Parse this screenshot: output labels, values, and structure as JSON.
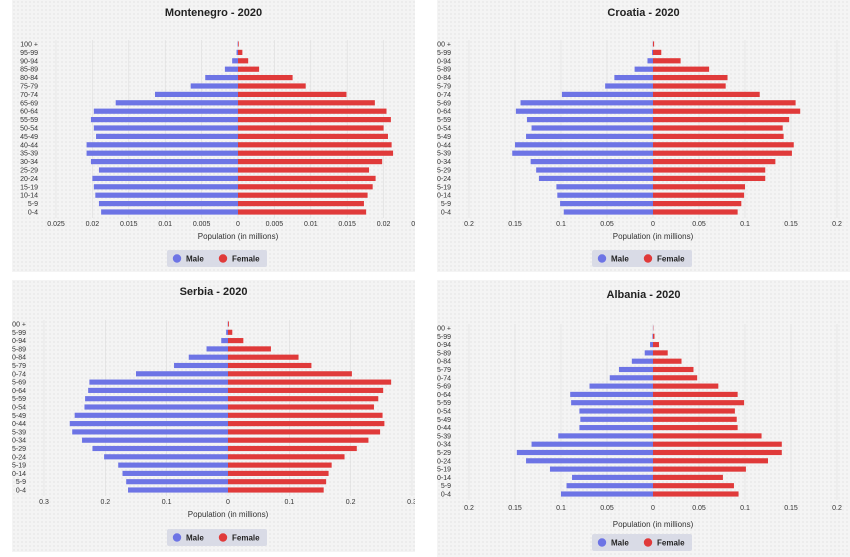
{
  "chart_data": [
    {
      "type": "bar",
      "title": "Montenegro - 2020",
      "xlabel": "Population (in millions)",
      "age_groups": [
        "0-4",
        "5-9",
        "10-14",
        "15-19",
        "20-24",
        "25-29",
        "30-34",
        "35-39",
        "40-44",
        "45-49",
        "50-54",
        "55-59",
        "60-64",
        "65-69",
        "70-74",
        "75-79",
        "80-84",
        "85-89",
        "90-94",
        "95-99",
        "100 +"
      ],
      "tick_labels": [
        "0.025",
        "0.02",
        "0.015",
        "0.01",
        "0.005",
        "0",
        "0.005",
        "0.01",
        "0.015",
        "0.02",
        "0.025"
      ],
      "xlim": [
        -0.025,
        0.025
      ],
      "series": [
        {
          "name": "Male",
          "values": [
            0.0188,
            0.0191,
            0.0196,
            0.0198,
            0.02,
            0.0191,
            0.0202,
            0.0208,
            0.0208,
            0.0195,
            0.0198,
            0.0202,
            0.0198,
            0.0168,
            0.0114,
            0.0065,
            0.0045,
            0.0018,
            0.0008,
            0.0002,
            5e-05
          ]
        },
        {
          "name": "Female",
          "values": [
            0.0176,
            0.0173,
            0.0178,
            0.0185,
            0.0189,
            0.018,
            0.0198,
            0.0213,
            0.0211,
            0.0206,
            0.02,
            0.021,
            0.0204,
            0.0188,
            0.0149,
            0.0093,
            0.0075,
            0.0029,
            0.0014,
            0.0006,
            0.0001
          ]
        }
      ]
    },
    {
      "type": "bar",
      "title": "Croatia - 2020",
      "xlabel": "Population (in millions)",
      "age_groups": [
        "0-4",
        "5-9",
        "10-14",
        "15-19",
        "20-24",
        "25-29",
        "30-34",
        "35-39",
        "40-44",
        "45-49",
        "50-54",
        "55-59",
        "60-64",
        "65-69",
        "70-74",
        "75-79",
        "80-84",
        "85-89",
        "90-94",
        "95-99",
        "100 +"
      ],
      "tick_labels": [
        "0.2",
        "0.15",
        "0.1",
        "0.05",
        "0",
        "0.05",
        "0.1",
        "0.15",
        "0.2"
      ],
      "xlim": [
        -0.2,
        0.2
      ],
      "series": [
        {
          "name": "Male",
          "values": [
            0.097,
            0.101,
            0.104,
            0.105,
            0.124,
            0.127,
            0.133,
            0.153,
            0.15,
            0.138,
            0.132,
            0.137,
            0.149,
            0.144,
            0.099,
            0.052,
            0.042,
            0.02,
            0.006,
            0.001,
            0.0002
          ]
        },
        {
          "name": "Female",
          "values": [
            0.092,
            0.096,
            0.099,
            0.1,
            0.122,
            0.122,
            0.133,
            0.151,
            0.153,
            0.142,
            0.141,
            0.148,
            0.16,
            0.155,
            0.116,
            0.079,
            0.081,
            0.061,
            0.03,
            0.009,
            0.0012
          ]
        }
      ]
    },
    {
      "type": "bar",
      "title": "Serbia - 2020",
      "xlabel": "Population (in millions)",
      "age_groups": [
        "0-4",
        "5-9",
        "10-14",
        "15-19",
        "20-24",
        "25-29",
        "30-34",
        "35-39",
        "40-44",
        "45-49",
        "50-54",
        "55-59",
        "60-64",
        "65-69",
        "70-74",
        "75-79",
        "80-84",
        "85-89",
        "90-94",
        "95-99",
        "100 +"
      ],
      "tick_labels": [
        "0.3",
        "0.2",
        "0.1",
        "0",
        "0.1",
        "0.2",
        "0.3"
      ],
      "xlim": [
        -0.3,
        0.3
      ],
      "series": [
        {
          "name": "Male",
          "values": [
            0.163,
            0.166,
            0.172,
            0.179,
            0.202,
            0.221,
            0.238,
            0.254,
            0.258,
            0.25,
            0.234,
            0.233,
            0.228,
            0.226,
            0.15,
            0.088,
            0.064,
            0.035,
            0.011,
            0.003,
            0.0004
          ]
        },
        {
          "name": "Female",
          "values": [
            0.156,
            0.16,
            0.164,
            0.169,
            0.19,
            0.21,
            0.229,
            0.248,
            0.255,
            0.252,
            0.238,
            0.245,
            0.253,
            0.266,
            0.202,
            0.136,
            0.115,
            0.07,
            0.025,
            0.007,
            0.0015
          ]
        }
      ]
    },
    {
      "type": "bar",
      "title": "Albania - 2020",
      "xlabel": "Population (in millions)",
      "age_groups": [
        "0-4",
        "5-9",
        "10-14",
        "15-19",
        "20-24",
        "25-29",
        "30-34",
        "35-39",
        "40-44",
        "45-49",
        "50-54",
        "55-59",
        "60-64",
        "65-69",
        "70-74",
        "75-79",
        "80-84",
        "85-89",
        "90-94",
        "95-99",
        "100 +"
      ],
      "tick_labels": [
        "0.2",
        "0.15",
        "0.1",
        "0.05",
        "0",
        "0.05",
        "0.1",
        "0.15",
        "0.2"
      ],
      "xlim": [
        -0.2,
        0.2
      ],
      "series": [
        {
          "name": "Male",
          "values": [
            0.1,
            0.094,
            0.088,
            0.112,
            0.138,
            0.148,
            0.132,
            0.103,
            0.08,
            0.079,
            0.08,
            0.089,
            0.09,
            0.069,
            0.047,
            0.037,
            0.023,
            0.009,
            0.0032,
            0.0006,
            0.0001
          ]
        },
        {
          "name": "Female",
          "values": [
            0.093,
            0.088,
            0.076,
            0.101,
            0.125,
            0.14,
            0.14,
            0.118,
            0.092,
            0.091,
            0.089,
            0.099,
            0.092,
            0.071,
            0.048,
            0.044,
            0.031,
            0.016,
            0.0065,
            0.0016,
            0.0002
          ]
        }
      ]
    }
  ],
  "colors": {
    "male": "#6d74e5",
    "female": "#e03a3a"
  }
}
